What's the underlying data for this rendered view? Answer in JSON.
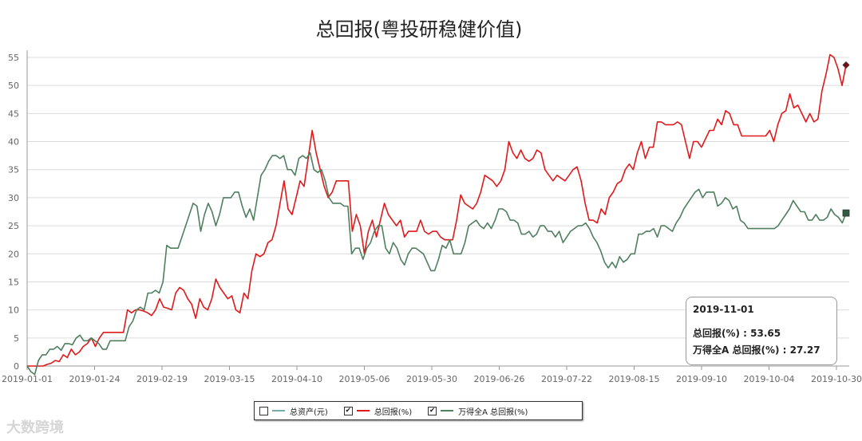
{
  "chart_data": {
    "type": "line",
    "title": "总回报(粤投研稳健价值)",
    "ylim": [
      -2,
      56
    ],
    "yticks": [
      0,
      5,
      10,
      15,
      20,
      25,
      30,
      35,
      40,
      45,
      50,
      55
    ],
    "xtick_labels": [
      "2019-01-01",
      "2019-01-24",
      "2019-02-19",
      "2019-03-15",
      "2019-04-10",
      "2019-05-06",
      "2019-05-30",
      "2019-06-26",
      "2019-07-22",
      "2019-08-15",
      "2019-09-10",
      "2019-10-04",
      "2019-10-30"
    ],
    "grid": true,
    "legend_position": "bottom",
    "series": [
      {
        "name": "总回报(%)",
        "color": "#e0191b",
        "values": [
          0,
          0,
          0,
          0,
          0,
          0.3,
          0.5,
          1,
          0.8,
          2,
          1.5,
          3,
          2,
          2.5,
          3.5,
          4,
          5,
          3.5,
          5,
          6,
          6,
          6,
          6,
          6,
          6,
          10,
          9.5,
          10,
          10,
          9.8,
          9.5,
          9,
          10,
          12,
          10.5,
          10.3,
          10,
          13,
          14,
          13.5,
          12,
          11,
          8.5,
          12,
          10.5,
          10,
          12,
          15.5,
          14,
          13,
          12,
          12.5,
          10,
          9.5,
          13,
          12,
          17,
          20,
          19.5,
          20,
          22,
          22.5,
          25,
          29,
          33,
          28,
          27,
          30,
          33,
          32,
          37,
          42,
          38,
          35,
          32,
          30,
          31,
          33,
          33,
          33,
          33,
          24,
          27,
          25,
          20,
          24,
          26,
          23,
          26,
          29,
          27,
          26,
          25,
          26,
          23,
          24,
          24,
          24,
          26,
          24,
          23.5,
          24,
          24,
          23,
          22.5,
          22.5,
          22.5,
          26,
          30.5,
          29,
          28.5,
          28,
          29,
          31,
          34,
          33.5,
          33,
          32,
          33,
          35,
          40,
          38,
          37,
          38.5,
          37,
          36.5,
          37,
          38.5,
          38,
          35,
          34,
          33,
          34,
          33.5,
          33,
          34,
          35,
          35.5,
          33,
          29,
          26,
          26,
          25.5,
          28,
          27,
          30,
          31,
          32.5,
          33,
          35,
          36,
          35,
          38,
          40,
          37,
          39,
          39,
          43.5,
          43.5,
          43,
          43,
          43,
          43.5,
          43,
          40,
          37,
          40,
          40,
          39,
          40.5,
          42,
          42,
          44,
          43,
          45.5,
          45,
          43,
          43,
          41,
          41,
          41,
          41,
          41,
          41,
          41,
          42,
          40,
          43,
          45,
          45.5,
          48.5,
          46,
          46.5,
          45,
          43.5,
          45,
          43.5,
          44,
          49,
          52,
          55.5,
          55,
          53,
          50,
          53.65
        ]
      },
      {
        "name": "万得全A 总回报(%)",
        "color": "#4e7f5e",
        "values": [
          0,
          -1,
          -1.5,
          1,
          2,
          2,
          3,
          3,
          3.5,
          2.8,
          4,
          4,
          3.8,
          5,
          5.5,
          4.5,
          4.5,
          5,
          4.5,
          4,
          3,
          3,
          4.5,
          4.5,
          4.5,
          4.5,
          4.5,
          7,
          8,
          10,
          10.5,
          10,
          13,
          13,
          13.5,
          13,
          15,
          21.5,
          21,
          21,
          21,
          23,
          25,
          27,
          29,
          28.5,
          24,
          27,
          29,
          27.5,
          25,
          27,
          30,
          30,
          30,
          31,
          31,
          28.5,
          26.5,
          28,
          26,
          30,
          34,
          35,
          36.5,
          37.5,
          37.5,
          37,
          37.5,
          35,
          35,
          34,
          37,
          37.5,
          37,
          38,
          35,
          34.5,
          35,
          33,
          30,
          29,
          29,
          29,
          28.5,
          28.5,
          20,
          21,
          21,
          19,
          21,
          22,
          24,
          25,
          25,
          21,
          20,
          22,
          21,
          19,
          18,
          20,
          21,
          21,
          20.5,
          20,
          18.5,
          17,
          17,
          19,
          21.5,
          21,
          22.5,
          20,
          20,
          20,
          22,
          25,
          25.5,
          26,
          25,
          24.5,
          25.5,
          24.5,
          26,
          28,
          28,
          27.5,
          26,
          26,
          25.5,
          23.5,
          23.5,
          24,
          23,
          23.5,
          25,
          25,
          24,
          24,
          23,
          24,
          22,
          23,
          24,
          24.5,
          25,
          25,
          25.5,
          24.5,
          23,
          22,
          20.5,
          18.5,
          17.5,
          18.5,
          17.5,
          19.5,
          18.5,
          19,
          20,
          20,
          23.5,
          23.5,
          24,
          24,
          24.5,
          23,
          25,
          25,
          24.5,
          24,
          25.5,
          26.5,
          28,
          29,
          30,
          31,
          31.5,
          30,
          31,
          31,
          31,
          28.5,
          29,
          30,
          29.5,
          28,
          28.5,
          26,
          25.5,
          24.5,
          24.5,
          24.5,
          24.5,
          24.5,
          24.5,
          24.5,
          24.5,
          25,
          26,
          27,
          28,
          29.5,
          28.5,
          27.5,
          27.5,
          26,
          26,
          27,
          26,
          26,
          26.5,
          28,
          27,
          26.5,
          25.5,
          27.27
        ]
      }
    ],
    "legend": [
      {
        "label": "总资产(元)",
        "checked": false,
        "color": "#7aa"
      },
      {
        "label": "总回报(%)",
        "checked": true,
        "color": "#e0191b"
      },
      {
        "label": "万得全A 总回报(%)",
        "checked": true,
        "color": "#4e7f5e"
      }
    ],
    "tooltip": {
      "date": "2019-11-01",
      "line1": "总回报(%) : 53.65",
      "line2": "万得全A 总回报(%) : 27.27"
    }
  },
  "watermark": "大数跨境"
}
